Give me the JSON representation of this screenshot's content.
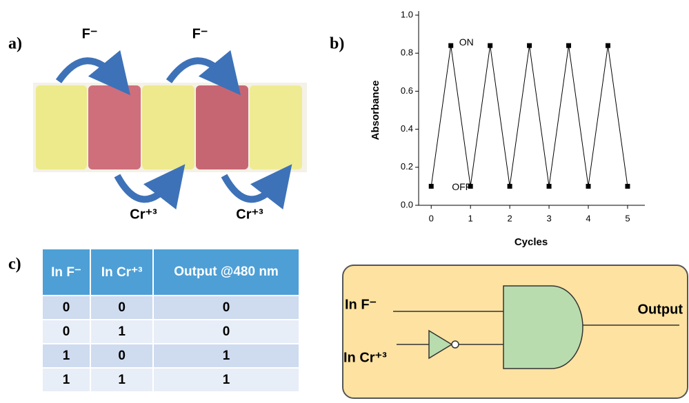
{
  "panel_a": {
    "label": "a)",
    "arrows_top": [
      "F⁻",
      "F⁻"
    ],
    "arrows_bottom": [
      "Cr⁺³",
      "Cr⁺³"
    ]
  },
  "chart_data": {
    "type": "line",
    "panel_label": "b)",
    "x": [
      0,
      0.5,
      1,
      1.5,
      2,
      2.5,
      3,
      3.5,
      4,
      4.5,
      5
    ],
    "values": [
      0.1,
      0.84,
      0.1,
      0.84,
      0.1,
      0.84,
      0.1,
      0.84,
      0.1,
      0.84,
      0.1
    ],
    "color": "#000000",
    "xlabel": "Cycles",
    "ylabel": "Absorbance",
    "xlim": [
      -0.32,
      5.44
    ],
    "ylim": [
      0,
      1
    ],
    "xticks": [
      0,
      1,
      2,
      3,
      4,
      5
    ],
    "yticks": [
      {
        "value": 0,
        "label": "0.0"
      },
      0.2,
      0.4,
      0.6,
      0.8,
      {
        "value": 1,
        "label": "1.0"
      }
    ],
    "annotations": [
      {
        "text": "ON",
        "x": 0.5,
        "y": 0.84
      },
      {
        "text": "OFF",
        "x": 0,
        "y": 0.1
      }
    ]
  },
  "panel_c": {
    "label": "c)",
    "table": {
      "header": [
        "In F⁻",
        "In Cr⁺³",
        "Output @480 nm"
      ],
      "rows": [
        [
          0,
          0,
          0
        ],
        [
          0,
          1,
          0
        ],
        [
          1,
          0,
          1
        ],
        [
          1,
          1,
          1
        ]
      ]
    },
    "gate": {
      "input_1": "In F⁻",
      "input_2": "In Cr⁺³",
      "output": "Output"
    }
  }
}
